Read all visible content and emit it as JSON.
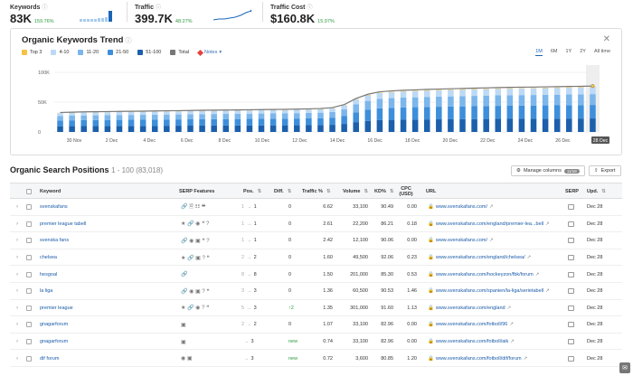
{
  "metrics": [
    {
      "label": "Keywords",
      "value": "83K",
      "change": "159.76%"
    },
    {
      "label": "Traffic",
      "value": "399.7K",
      "change": "48.27%"
    },
    {
      "label": "Traffic Cost",
      "value": "$160.8K",
      "change": "15.97%"
    }
  ],
  "trend": {
    "title": "Organic Keywords Trend",
    "legend": [
      {
        "label": "Top 3",
        "color": "#f5c242"
      },
      {
        "label": "4-10",
        "color": "#bcd9f5"
      },
      {
        "label": "11-20",
        "color": "#7bb6ec"
      },
      {
        "label": "21-50",
        "color": "#3d8fdb"
      },
      {
        "label": "51-100",
        "color": "#1c5fab"
      },
      {
        "label": "Total",
        "color": "#777777"
      }
    ],
    "notes_label": "Notes",
    "ranges": [
      "1M",
      "6M",
      "1Y",
      "2Y",
      "All time"
    ],
    "active_range": "1M"
  },
  "chart_data": {
    "type": "bar",
    "title": "Organic Keywords Trend",
    "y_ticks": [
      "100K",
      "50K",
      "0"
    ],
    "ylim": [
      0,
      100000
    ],
    "x_tick_labels": [
      "30 Nov",
      "2 Dec",
      "4 Dec",
      "6 Dec",
      "8 Dec",
      "10 Dec",
      "12 Dec",
      "14 Dec",
      "16 Dec",
      "18 Dec",
      "20 Dec",
      "22 Dec",
      "24 Dec",
      "26 Dec",
      "28 Dec"
    ],
    "series_stack": [
      "51-100",
      "21-50",
      "11-20",
      "4-10",
      "Top 3"
    ],
    "totals": [
      32000,
      32500,
      33000,
      33200,
      33500,
      33800,
      34000,
      34200,
      34500,
      34800,
      35000,
      35300,
      35600,
      35800,
      36000,
      36200,
      36500,
      36800,
      37000,
      37200,
      37500,
      38000,
      38500,
      40000,
      45000,
      55000,
      62000,
      66000,
      67500,
      68500,
      69200,
      70000,
      70500,
      71000,
      71500,
      72000,
      72500,
      73000,
      73300,
      73600,
      73800,
      74200,
      74500,
      74800,
      75000,
      75500
    ]
  },
  "section": {
    "title": "Organic Search Positions",
    "range": "1 - 100 (83,018)",
    "manage_columns": "Manage columns",
    "manage_badge": "11/18",
    "export": "Export"
  },
  "columns": {
    "keyword": "Keyword",
    "serp_features": "SERP Features",
    "pos": "Pos.",
    "diff": "Diff.",
    "traffic": "Traffic %",
    "volume": "Volume",
    "kd": "KD%",
    "cpc": "CPC (USD)",
    "url": "URL",
    "serp": "SERP",
    "upd": "Upd."
  },
  "rows": [
    {
      "keyword": "svenskafans",
      "feats": "🔗 🗎 ☷ ❝",
      "pos_from": "1",
      "pos_to": "1",
      "diff": "0",
      "traffic": "6.62",
      "volume": "33,100",
      "kd": "90.49",
      "cpc": "0.00",
      "url": "www.svenskafans.com/",
      "upd": "Dec 28"
    },
    {
      "keyword": "premier league tabell",
      "feats": "★ 🔗 ◉ ❝ ?",
      "pos_from": "1",
      "pos_to": "1",
      "diff": "0",
      "traffic": "2.61",
      "volume": "22,200",
      "kd": "86.21",
      "cpc": "0.18",
      "url": "www.svenskafans.com/england/premier-lea...bell",
      "upd": "Dec 28"
    },
    {
      "keyword": "svenska fans",
      "feats": "🔗 ◉ ▣ ❝ ?",
      "pos_from": "1",
      "pos_to": "1",
      "diff": "0",
      "traffic": "2.42",
      "volume": "12,100",
      "kd": "90.06",
      "cpc": "0.00",
      "url": "www.svenskafans.com/",
      "upd": "Dec 28"
    },
    {
      "keyword": "chelsea",
      "feats": "★ 🔗 ▣ ? ❝",
      "pos_from": "2",
      "pos_to": "2",
      "diff": "0",
      "traffic": "1.60",
      "volume": "49,500",
      "kd": "92.06",
      "cpc": "0.23",
      "url": "www.svenskafans.com/england/chelsea/",
      "upd": "Dec 28"
    },
    {
      "keyword": "hesgoal",
      "feats": "🔗",
      "pos_from": "8",
      "pos_to": "8",
      "diff": "0",
      "traffic": "1.50",
      "volume": "201,000",
      "kd": "85.30",
      "cpc": "0.53",
      "url": "www.svenskafans.com/hockeyzon/fbk/forum",
      "upd": "Dec 28"
    },
    {
      "keyword": "la liga",
      "feats": "🔗 ◉ ▣ ? ❝",
      "pos_from": "3",
      "pos_to": "3",
      "diff": "0",
      "traffic": "1.36",
      "volume": "60,500",
      "kd": "90.53",
      "cpc": "1.46",
      "url": "www.svenskafans.com/spanien/la-liga/serietabell",
      "upd": "Dec 28"
    },
    {
      "keyword": "premier league",
      "feats": "★ 🔗 ◉ ? ❝",
      "pos_from": "5",
      "pos_to": "3",
      "diff": "↑2",
      "traffic": "1.35",
      "volume": "301,000",
      "kd": "91.60",
      "cpc": "1.13",
      "url": "www.svenskafans.com/england",
      "upd": "Dec 28"
    },
    {
      "keyword": "gnagarforum",
      "feats": "▣",
      "pos_from": "2",
      "pos_to": "2",
      "diff": "0",
      "traffic": "1.07",
      "volume": "33,100",
      "kd": "82.96",
      "cpc": "0.00",
      "url": "www.svenskafans.com/fotboll/96",
      "upd": "Dec 28"
    },
    {
      "keyword": "gnagarforum",
      "feats": "▣",
      "pos_from": "",
      "pos_to": "3",
      "diff": "new",
      "traffic": "0.74",
      "volume": "33,100",
      "kd": "82.96",
      "cpc": "0.00",
      "url": "www.svenskafans.com/fotboll/aik",
      "upd": "Dec 28"
    },
    {
      "keyword": "dif forum",
      "feats": "◉ ▣",
      "pos_from": "",
      "pos_to": "3",
      "diff": "new",
      "traffic": "0.72",
      "volume": "3,600",
      "kd": "80.85",
      "cpc": "1.20",
      "url": "www.svenskafans.com/fotboll/dif/forum",
      "upd": "Dec 28"
    }
  ]
}
